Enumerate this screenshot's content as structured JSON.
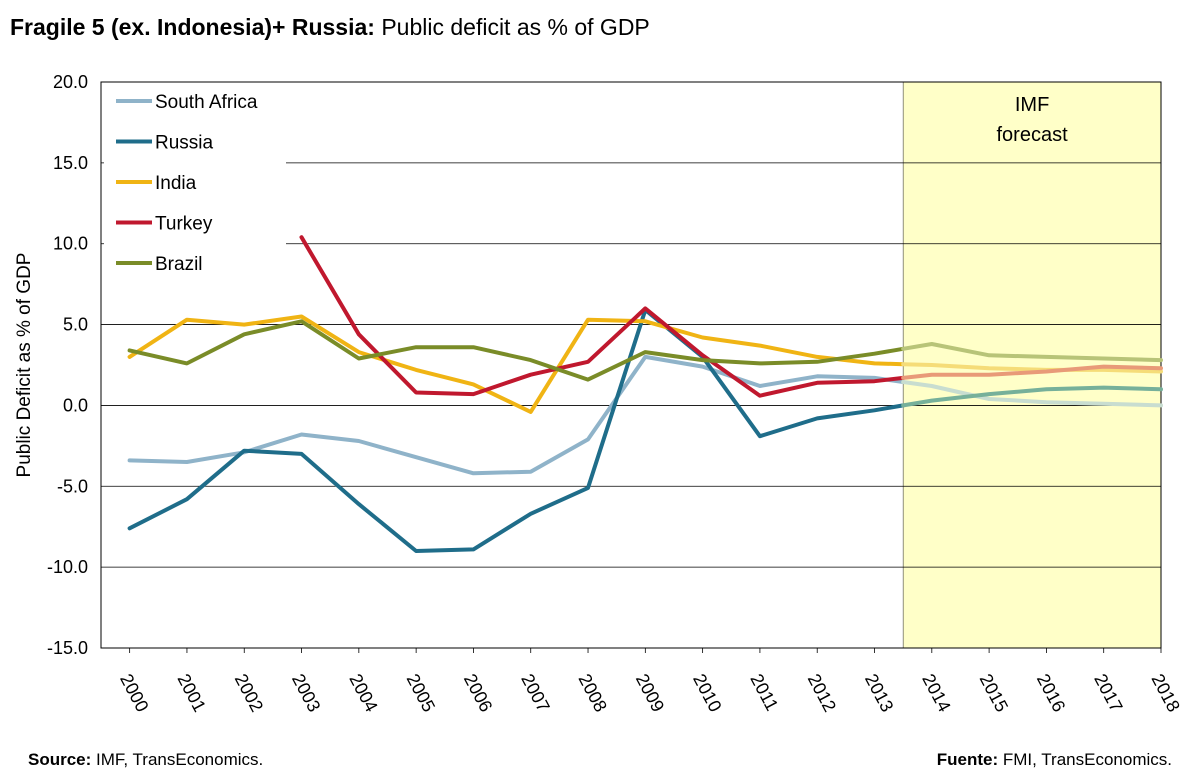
{
  "title": {
    "bold": "Fragile 5 (ex. Indonesia)+ Russia:",
    "rest": "Public deficit as % of GDP"
  },
  "source_left": {
    "label": "Source:",
    "text": "IMF, TransEconomics."
  },
  "source_right": {
    "label": "Fuente:",
    "text": "FMI, TransEconomics."
  },
  "chart_data": {
    "type": "line",
    "title": "Fragile 5 (ex. Indonesia)+ Russia: Public deficit as % of GDP",
    "ylabel": "Public Deficit as % of GDP",
    "xlabel": "",
    "ylim": [
      -15,
      20
    ],
    "yticks": [
      "20.0",
      "15.0",
      "10.0",
      "5.0",
      "0.0",
      "-5.0",
      "-10.0",
      "-15.0"
    ],
    "x": [
      "2000",
      "2001",
      "2002",
      "2003",
      "2004",
      "2005",
      "2006",
      "2007",
      "2008",
      "2009",
      "2010",
      "2011",
      "2012",
      "2013",
      "2014",
      "2015",
      "2016",
      "2017",
      "2018"
    ],
    "forecast": {
      "label_line1": "IMF",
      "label_line2": "forecast",
      "from": "2013.5",
      "to": "2018.5",
      "color": "#ffffc8"
    },
    "legend_placement": "top-left",
    "series": [
      {
        "name": "South Africa",
        "color": "#8fb3c9",
        "forecast_color": "#c8ddd0",
        "values": [
          -3.4,
          -3.5,
          -2.9,
          -1.8,
          -2.2,
          -3.2,
          -4.2,
          -4.1,
          -2.1,
          3.0,
          2.4,
          1.2,
          1.8,
          1.7,
          1.2,
          0.4,
          0.2,
          0.1,
          0.0
        ]
      },
      {
        "name": "Russia",
        "color": "#1f6d8a",
        "forecast_color": "#76b09a",
        "values": [
          -7.6,
          -5.8,
          -2.8,
          -3.0,
          -6.1,
          -9.0,
          -8.9,
          -6.7,
          -5.1,
          5.9,
          3.0,
          -1.9,
          -0.8,
          -0.3,
          0.3,
          0.7,
          1.0,
          1.1,
          1.0
        ]
      },
      {
        "name": "India",
        "color": "#f0b414",
        "forecast_color": "#f5dc78",
        "values": [
          3.0,
          5.3,
          5.0,
          5.5,
          3.3,
          2.2,
          1.3,
          -0.4,
          5.3,
          5.2,
          4.2,
          3.7,
          3.0,
          2.6,
          2.5,
          2.3,
          2.2,
          2.2,
          2.1
        ]
      },
      {
        "name": "Turkey",
        "color": "#c0182e",
        "forecast_color": "#e89a78",
        "values": [
          null,
          null,
          null,
          10.4,
          4.4,
          0.8,
          0.7,
          1.9,
          2.7,
          6.0,
          3.1,
          0.6,
          1.4,
          1.5,
          1.9,
          1.9,
          2.1,
          2.4,
          2.3
        ]
      },
      {
        "name": "Brazil",
        "color": "#7a8c28",
        "forecast_color": "#b8c478",
        "values": [
          3.4,
          2.6,
          4.4,
          5.2,
          2.9,
          3.6,
          3.6,
          2.8,
          1.6,
          3.3,
          2.8,
          2.6,
          2.7,
          3.2,
          3.8,
          3.1,
          3.0,
          2.9,
          2.8
        ]
      }
    ]
  }
}
